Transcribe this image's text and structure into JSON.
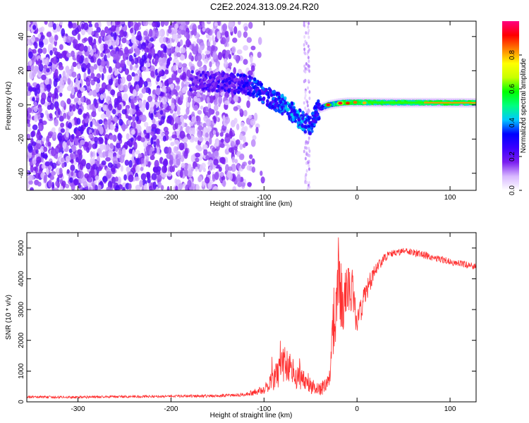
{
  "title": "C2E2.2024.313.09.24.R20",
  "chart_data": [
    {
      "type": "heatmap",
      "xlabel": "Height of straight line (km)",
      "ylabel": "Frequency (Hz)",
      "xlim": [
        -355,
        128
      ],
      "ylim": [
        -50,
        49
      ],
      "xticks": [
        -300,
        -200,
        -100,
        0,
        100
      ],
      "yticks": [
        -40,
        -20,
        0,
        20,
        40
      ],
      "colorbar": {
        "label": "Normalized spectral amplitude",
        "range": [
          0,
          1
        ],
        "ticks": [
          0.0,
          0.2,
          0.4,
          0.6,
          0.8
        ],
        "tick_labels": [
          "0.0",
          "0.2",
          "0.4",
          "0.6",
          "0.8"
        ],
        "colormap": [
          "#ffffff",
          "#d8b8ff",
          "#7a1ef0",
          "#3a00ff",
          "#0000ff",
          "#00c8ff",
          "#00ff80",
          "#00ff00",
          "#c8ff00",
          "#ffff00",
          "#ff8000",
          "#ff0000",
          "#ff0080"
        ]
      },
      "ridge": {
        "x": [
          -180,
          -160,
          -140,
          -120,
          -110,
          -100,
          -90,
          -80,
          -70,
          -60,
          -50,
          -45,
          -40,
          -30,
          -20,
          -10,
          0,
          20,
          50,
          80,
          128
        ],
        "y": [
          14,
          13.5,
          13,
          12,
          10,
          6,
          3,
          0,
          -4,
          -9,
          -13,
          -6,
          -2,
          0,
          1,
          1.5,
          1.5,
          1.4,
          1.3,
          1.3,
          1.2
        ],
        "amplitude": [
          0.25,
          0.28,
          0.3,
          0.35,
          0.4,
          0.4,
          0.4,
          0.45,
          0.45,
          0.45,
          0.4,
          0.4,
          0.42,
          0.45,
          0.6,
          0.6,
          0.62,
          0.6,
          0.6,
          0.62,
          0.6
        ]
      },
      "hotspots": [
        {
          "x": -31,
          "y": 0,
          "amplitude": 0.9
        },
        {
          "x": -18,
          "y": 1,
          "amplitude": 0.95
        },
        {
          "x": -10,
          "y": 1,
          "amplitude": 0.9
        },
        {
          "x": -2,
          "y": 1.5,
          "amplitude": 0.85
        },
        {
          "x": 8,
          "y": 1.2,
          "amplitude": 0.8
        }
      ]
    },
    {
      "type": "line",
      "xlabel": "Height of straight line (km)",
      "ylabel": "SNR (10 * v/v)",
      "xlim": [
        -355,
        128
      ],
      "ylim": [
        0,
        5500
      ],
      "xticks": [
        -300,
        -200,
        -100,
        0,
        100
      ],
      "yticks": [
        0,
        1000,
        2000,
        3000,
        4000,
        5000
      ],
      "color": "#ff3030",
      "series": [
        {
          "x": [
            -355,
            -300,
            -250,
            -200,
            -150,
            -120,
            -100,
            -90,
            -80,
            -70,
            -60,
            -50,
            -40,
            -30,
            -25,
            -20,
            -15,
            -10,
            -5,
            0,
            10,
            20,
            30,
            40,
            50,
            60,
            70,
            80,
            90,
            100,
            110,
            128
          ],
          "y": [
            160,
            150,
            170,
            180,
            200,
            230,
            400,
            700,
            1200,
            1000,
            800,
            500,
            400,
            600,
            2500,
            3500,
            3300,
            3800,
            3600,
            2600,
            3600,
            4300,
            4700,
            4850,
            4900,
            4850,
            4800,
            4700,
            4650,
            4550,
            4500,
            4400
          ],
          "noise": [
            40,
            40,
            40,
            40,
            50,
            60,
            150,
            350,
            700,
            500,
            450,
            250,
            200,
            300,
            1200,
            1400,
            1000,
            800,
            700,
            500,
            400,
            200,
            150,
            120,
            120,
            120,
            120,
            120,
            110,
            110,
            110,
            100
          ]
        }
      ]
    }
  ]
}
